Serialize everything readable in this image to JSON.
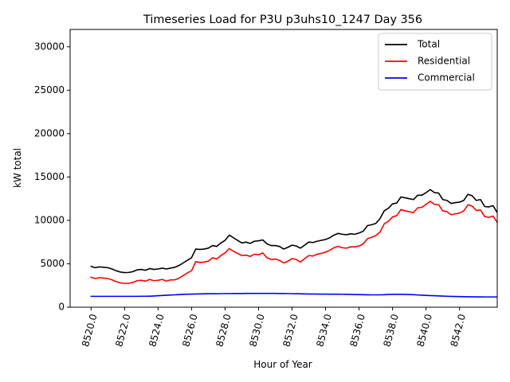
{
  "chart_data": {
    "type": "line",
    "title": "Timeseries Load for P3U p3uhs10_1247  Day 356",
    "xlabel": "Hour of Year",
    "ylabel": "kW total",
    "xlim": [
      8518.75,
      8544.25
    ],
    "ylim": [
      0,
      32000
    ],
    "xticks": [
      8520,
      8522,
      8524,
      8526,
      8528,
      8530,
      8532,
      8534,
      8536,
      8538,
      8540,
      8542
    ],
    "xtick_labels": [
      "8520.0",
      "8522.0",
      "8524.0",
      "8526.0",
      "8528.0",
      "8530.0",
      "8532.0",
      "8534.0",
      "8536.0",
      "8538.0",
      "8540.0",
      "8542.0"
    ],
    "yticks": [
      0,
      5000,
      10000,
      15000,
      20000,
      25000,
      30000
    ],
    "ytick_labels": [
      "0",
      "5000",
      "10000",
      "15000",
      "20000",
      "25000",
      "30000"
    ],
    "legend_position": "top-right",
    "x_start": 8520,
    "x_step": 0.25,
    "series": [
      {
        "name": "Total",
        "color": "#000000",
        "values": [
          4700,
          4550,
          4650,
          4600,
          4550,
          4400,
          4200,
          4050,
          3980,
          4000,
          4100,
          4300,
          4350,
          4250,
          4450,
          4350,
          4400,
          4500,
          4400,
          4500,
          4600,
          4800,
          5100,
          5400,
          5700,
          6700,
          6650,
          6700,
          6800,
          7100,
          7000,
          7400,
          7700,
          8300,
          8000,
          7700,
          7400,
          7500,
          7350,
          7600,
          7650,
          7750,
          7300,
          7100,
          7100,
          7000,
          6700,
          6900,
          7150,
          7050,
          6800,
          7150,
          7500,
          7450,
          7600,
          7700,
          7800,
          8000,
          8300,
          8500,
          8400,
          8350,
          8450,
          8400,
          8550,
          8750,
          9400,
          9500,
          9650,
          10200,
          11100,
          11400,
          11900,
          12000,
          12700,
          12600,
          12500,
          12400,
          12900,
          12900,
          13200,
          13550,
          13200,
          13150,
          12400,
          12300,
          11950,
          12050,
          12100,
          12300,
          13000,
          12850,
          12300,
          12400,
          11600,
          11550,
          11700,
          10900
        ]
      },
      {
        "name": "Residential",
        "color": "#ff0000",
        "values": [
          3450,
          3300,
          3400,
          3350,
          3300,
          3150,
          2950,
          2800,
          2750,
          2750,
          2850,
          3050,
          3100,
          3000,
          3200,
          3050,
          3100,
          3200,
          3000,
          3150,
          3150,
          3350,
          3650,
          3950,
          4200,
          5250,
          5150,
          5200,
          5300,
          5700,
          5550,
          5950,
          6250,
          6750,
          6450,
          6200,
          5950,
          6000,
          5850,
          6100,
          6050,
          6250,
          5700,
          5500,
          5550,
          5400,
          5100,
          5300,
          5600,
          5500,
          5200,
          5600,
          5950,
          5900,
          6100,
          6200,
          6350,
          6550,
          6850,
          7000,
          6850,
          6800,
          6950,
          6950,
          7050,
          7300,
          7900,
          8050,
          8250,
          8650,
          9600,
          9900,
          10400,
          10550,
          11250,
          11100,
          11000,
          10900,
          11450,
          11500,
          11850,
          12200,
          11850,
          11800,
          11100,
          11000,
          10650,
          10750,
          10850,
          11100,
          11800,
          11650,
          11150,
          11200,
          10450,
          10350,
          10500,
          9750
        ]
      },
      {
        "name": "Commercial",
        "color": "#0000ff",
        "values": [
          1250,
          1250,
          1250,
          1250,
          1250,
          1250,
          1250,
          1250,
          1250,
          1250,
          1250,
          1250,
          1260,
          1260,
          1270,
          1290,
          1320,
          1350,
          1380,
          1400,
          1420,
          1450,
          1480,
          1500,
          1510,
          1520,
          1530,
          1540,
          1550,
          1550,
          1550,
          1560,
          1570,
          1570,
          1580,
          1580,
          1580,
          1590,
          1590,
          1590,
          1590,
          1590,
          1590,
          1590,
          1590,
          1580,
          1580,
          1570,
          1560,
          1550,
          1540,
          1530,
          1520,
          1520,
          1510,
          1510,
          1510,
          1500,
          1500,
          1500,
          1490,
          1480,
          1470,
          1460,
          1450,
          1440,
          1430,
          1420,
          1420,
          1420,
          1440,
          1470,
          1480,
          1480,
          1480,
          1470,
          1460,
          1440,
          1410,
          1380,
          1360,
          1340,
          1320,
          1300,
          1280,
          1260,
          1240,
          1230,
          1220,
          1210,
          1200,
          1200,
          1190,
          1190,
          1180,
          1180,
          1180,
          1180
        ]
      }
    ]
  }
}
